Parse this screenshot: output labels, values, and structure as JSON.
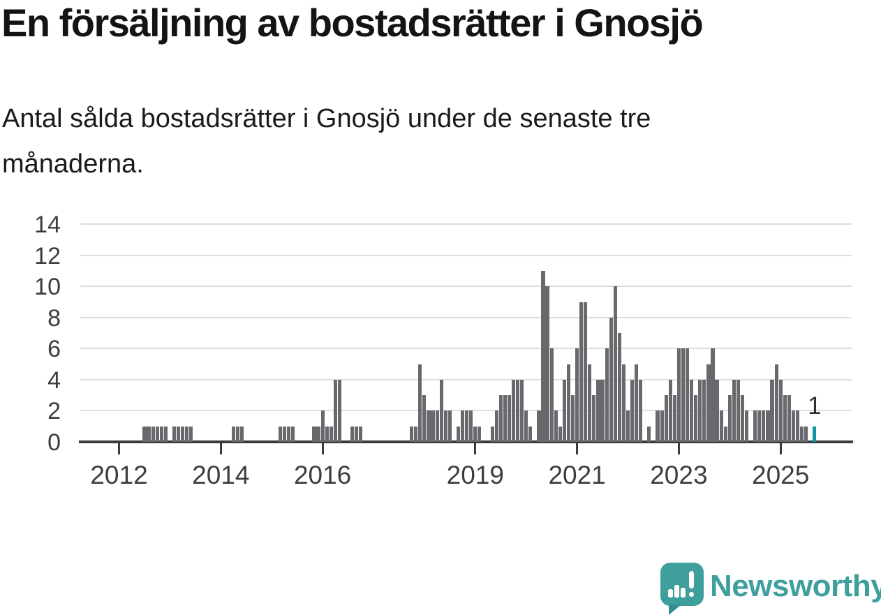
{
  "header": {
    "title": "En försäljning av bostadsrätter i Gnosjö",
    "subtitle": "Antal sålda bostadsrätter i Gnosjö under de senaste tre\nmånaderna."
  },
  "footer": {
    "logo_text": "Newsworthy",
    "logo_color": "#3f9f9d"
  },
  "chart_data": {
    "type": "bar",
    "title": "En försäljning av bostadsrätter i Gnosjö",
    "subtitle": "Antal sålda bostadsrätter i Gnosjö under de senaste tre månaderna.",
    "x_start_month": "2011-01",
    "frequency": "monthly",
    "values": [
      0,
      0,
      0,
      0,
      0,
      0,
      0,
      0,
      0,
      0,
      0,
      0,
      0,
      0,
      0,
      0,
      0,
      0,
      1,
      1,
      1,
      1,
      1,
      1,
      0,
      1,
      1,
      1,
      1,
      1,
      0,
      0,
      0,
      0,
      0,
      0,
      0,
      0,
      0,
      1,
      1,
      1,
      0,
      0,
      0,
      0,
      0,
      0,
      0,
      0,
      1,
      1,
      1,
      1,
      0,
      0,
      0,
      0,
      1,
      1,
      2,
      1,
      1,
      4,
      4,
      0,
      0,
      1,
      1,
      1,
      0,
      0,
      0,
      0,
      0,
      0,
      0,
      0,
      0,
      0,
      0,
      1,
      1,
      5,
      3,
      2,
      2,
      2,
      4,
      2,
      2,
      0,
      1,
      2,
      2,
      2,
      1,
      1,
      0,
      0,
      1,
      2,
      3,
      3,
      3,
      4,
      4,
      4,
      2,
      1,
      0,
      2,
      11,
      10,
      6,
      2,
      1,
      4,
      5,
      3,
      6,
      9,
      9,
      5,
      3,
      4,
      4,
      6,
      8,
      10,
      7,
      5,
      2,
      4,
      5,
      4,
      0,
      1,
      0,
      2,
      2,
      3,
      4,
      3,
      6,
      6,
      6,
      4,
      3,
      4,
      4,
      5,
      6,
      4,
      2,
      1,
      3,
      4,
      4,
      3,
      2,
      0,
      2,
      2,
      2,
      2,
      4,
      5,
      4,
      3,
      3,
      2,
      2,
      1,
      1,
      0,
      1
    ],
    "ylim": [
      0,
      14
    ],
    "yticks": [
      0,
      2,
      4,
      6,
      8,
      10,
      12,
      14
    ],
    "xticks": [
      2012,
      2014,
      2016,
      2019,
      2021,
      2023,
      2025
    ],
    "grid": true,
    "legend": "none",
    "bar_color": "#68686d",
    "highlight_color": "#0c9a9e",
    "highlight_last": true,
    "last_label": "1"
  }
}
